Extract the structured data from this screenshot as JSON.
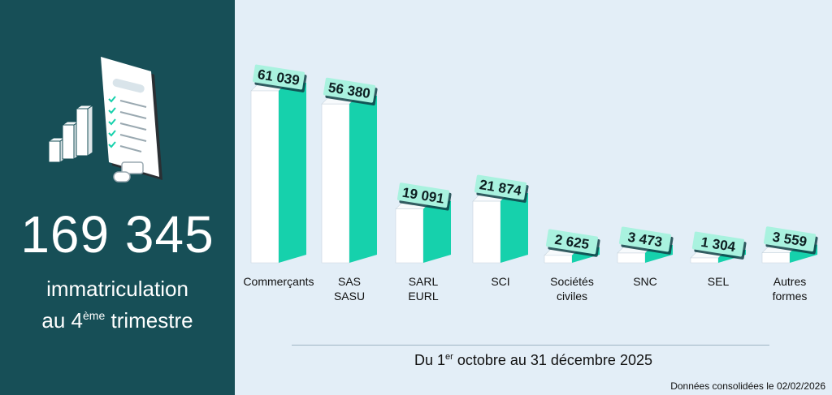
{
  "summary": {
    "total": "169 345",
    "caption_line1": "immatriculation",
    "caption_line2_prefix": "au 4",
    "caption_line2_sup": "ème",
    "caption_line2_suffix": " trimestre"
  },
  "period": {
    "prefix": "Du 1",
    "sup": "er",
    "suffix": " octobre au 31 décembre 2025"
  },
  "footnote": "Données consolidées le 02/02/2026",
  "colors": {
    "left_panel": "#174f57",
    "background": "#e3eef7",
    "bar_accent": "#16d1ac",
    "value_tag": "#a9f2df"
  },
  "chart_data": {
    "type": "bar",
    "title": "",
    "xlabel": "",
    "ylabel": "",
    "ylim": [
      0,
      61039
    ],
    "grid": false,
    "legend": "none",
    "categories": [
      [
        "Commerçants"
      ],
      [
        "SAS",
        "SASU"
      ],
      [
        "SARL",
        "EURL"
      ],
      [
        "SCI"
      ],
      [
        "Sociétés",
        "civiles"
      ],
      [
        "SNC"
      ],
      [
        "SEL"
      ],
      [
        "Autres",
        "formes"
      ]
    ],
    "values": [
      61039,
      56380,
      19091,
      21874,
      2625,
      3473,
      1304,
      3559
    ],
    "value_labels": [
      "61 039",
      "56 380",
      "19 091",
      "21 874",
      "2 625",
      "3 473",
      "1 304",
      "3 559"
    ]
  }
}
